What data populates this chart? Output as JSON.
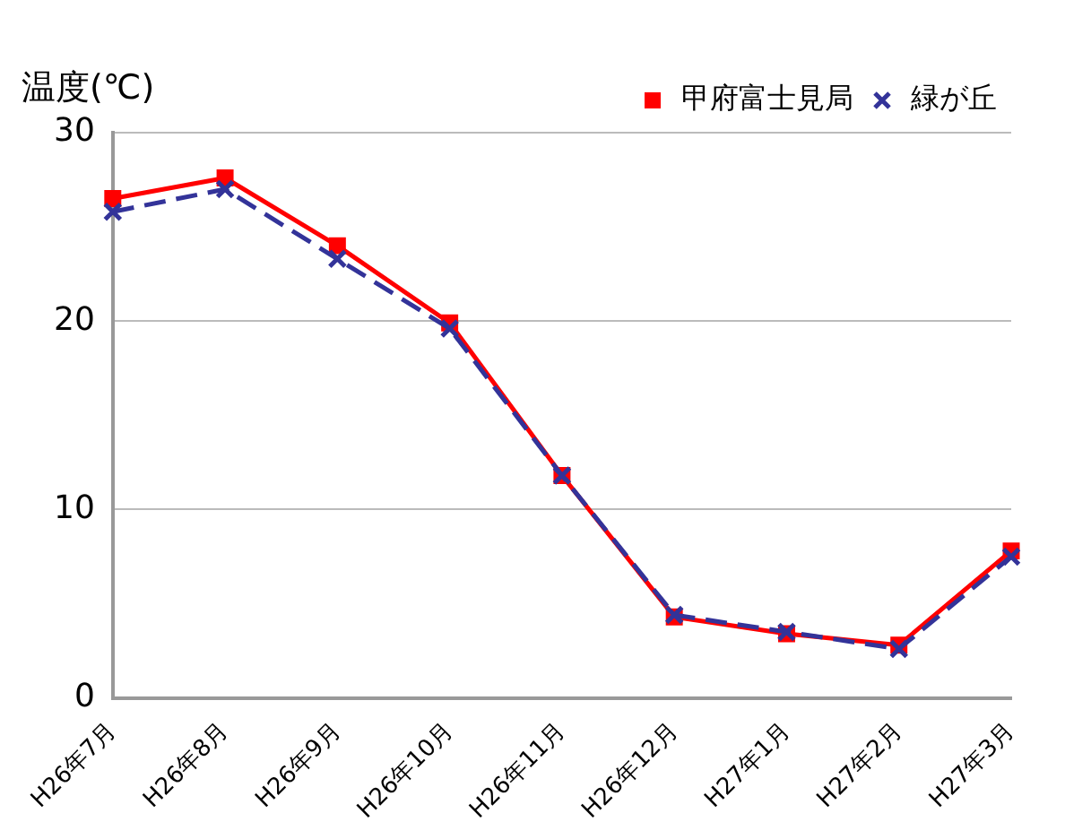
{
  "chart_data": {
    "type": "line",
    "ylabel": "温度(℃)",
    "categories": [
      "H26年7月",
      "H26年8月",
      "H26年9月",
      "H26年10月",
      "H26年11月",
      "H26年12月",
      "H27年1月",
      "H27年2月",
      "H27年3月"
    ],
    "series": [
      {
        "name": "甲府富士見局",
        "color": "#ff0000",
        "marker": "square",
        "line_style": "solid",
        "values": [
          26.5,
          27.6,
          24.0,
          19.9,
          11.8,
          4.3,
          3.4,
          2.8,
          7.8
        ]
      },
      {
        "name": "緑が丘",
        "color": "#333399",
        "marker": "cross",
        "line_style": "dashed",
        "values": [
          25.8,
          27.0,
          23.3,
          19.6,
          11.8,
          4.4,
          3.5,
          2.6,
          7.5
        ]
      }
    ],
    "ylim": [
      0,
      30
    ],
    "yticks": [
      0,
      10,
      20,
      30
    ],
    "grid": "y",
    "legend": "top right"
  }
}
